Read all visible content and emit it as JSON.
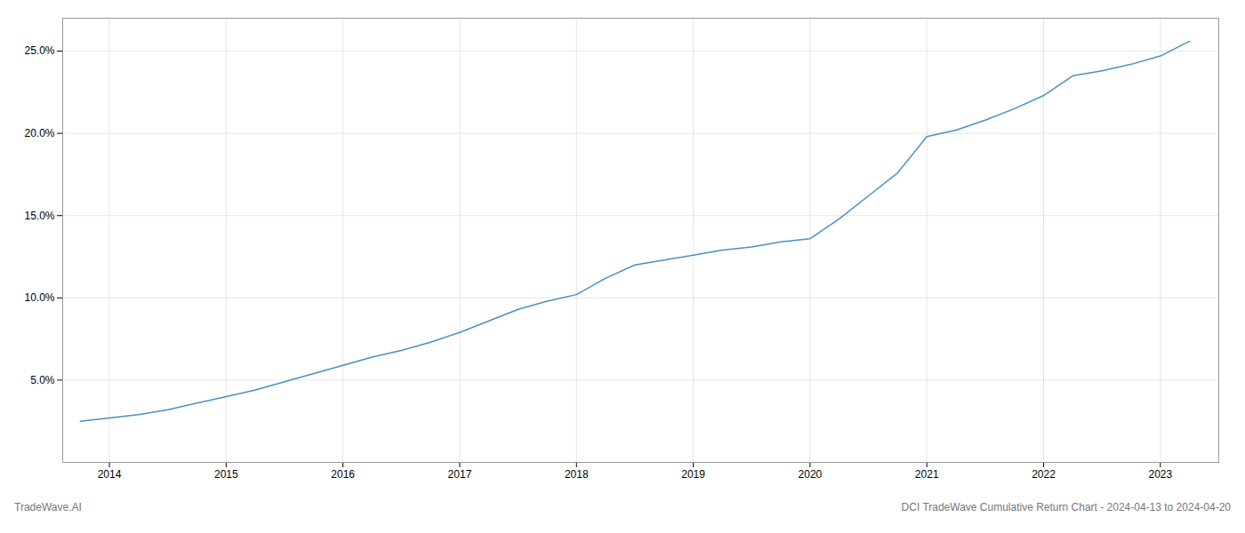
{
  "chart_data": {
    "type": "line",
    "x": [
      2013.75,
      2014.0,
      2014.25,
      2014.5,
      2014.75,
      2015.0,
      2015.25,
      2015.5,
      2015.75,
      2016.0,
      2016.25,
      2016.5,
      2016.75,
      2017.0,
      2017.25,
      2017.5,
      2017.75,
      2018.0,
      2018.25,
      2018.5,
      2018.75,
      2019.0,
      2019.25,
      2019.5,
      2019.75,
      2020.0,
      2020.25,
      2020.5,
      2020.75,
      2021.0,
      2021.25,
      2021.5,
      2021.75,
      2022.0,
      2022.25,
      2022.5,
      2022.75,
      2023.0,
      2023.25
    ],
    "values": [
      2.5,
      2.7,
      2.9,
      3.2,
      3.6,
      4.0,
      4.4,
      4.9,
      5.4,
      5.9,
      6.4,
      6.8,
      7.3,
      7.9,
      8.6,
      9.3,
      9.8,
      10.2,
      11.2,
      12.0,
      12.3,
      12.6,
      12.9,
      13.1,
      13.4,
      13.6,
      14.8,
      16.2,
      17.6,
      19.8,
      20.2,
      20.8,
      21.5,
      22.3,
      23.5,
      23.8,
      24.2,
      24.7,
      25.6
    ],
    "color": "#4a90c4",
    "xlim": [
      2013.6,
      2023.5
    ],
    "xticks": [
      2014,
      2015,
      2016,
      2017,
      2018,
      2019,
      2020,
      2021,
      2022,
      2023
    ],
    "ylim": [
      0,
      27
    ],
    "yticks": [
      {
        "value": 5.0,
        "label": "5.0%"
      },
      {
        "value": 10.0,
        "label": "10.0%"
      },
      {
        "value": 15.0,
        "label": "15.0%"
      },
      {
        "value": 20.0,
        "label": "20.0%"
      },
      {
        "value": 25.0,
        "label": "25.0%"
      }
    ],
    "grid": true,
    "annotations": [
      "TradeWave.AI",
      "DCI TradeWave Cumulative Return Chart - 2024-04-13 to 2024-04-20"
    ]
  }
}
